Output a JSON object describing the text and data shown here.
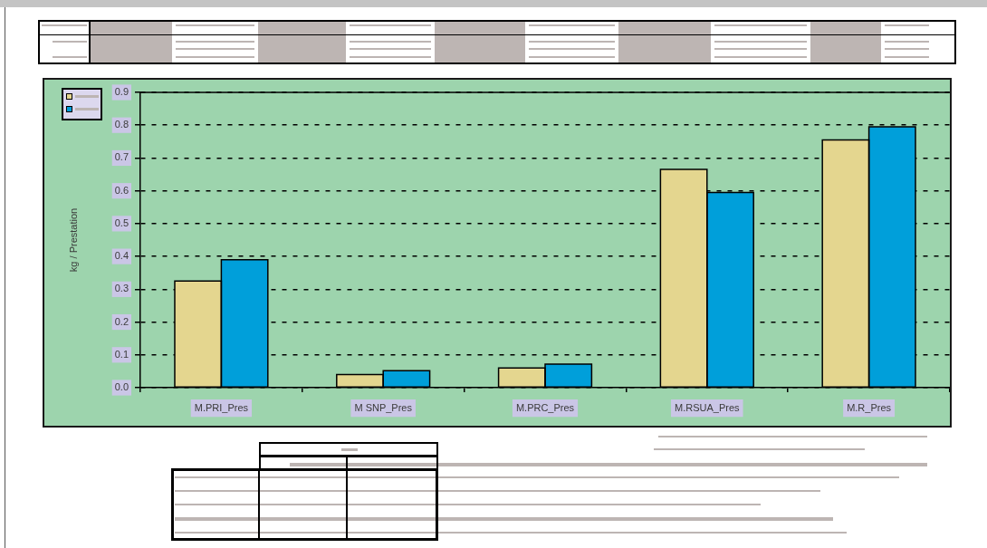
{
  "chart_data": {
    "type": "bar",
    "ylabel": "kg / Prestation",
    "categories": [
      "M.PRI_Pres",
      "M SNP_Pres",
      "M.PRC_Pres",
      "M.RSUA_Pres",
      "M.R_Pres"
    ],
    "series": [
      {
        "color": "#e4d68f",
        "values": [
          0.325,
          0.04,
          0.06,
          0.665,
          0.755
        ]
      },
      {
        "color": "#009fda",
        "values": [
          0.39,
          0.052,
          0.072,
          0.595,
          0.795
        ]
      }
    ],
    "ylim": [
      0,
      0.9
    ],
    "yticks": [
      {
        "value": 0,
        "label": "0.0"
      },
      {
        "value": 0.1,
        "label": "0.1"
      },
      {
        "value": 0.2,
        "label": "0.2"
      },
      {
        "value": 0.3,
        "label": "0.3"
      },
      {
        "value": 0.4,
        "label": "0.4"
      },
      {
        "value": 0.5,
        "label": "0.5"
      },
      {
        "value": 0.6,
        "label": "0.6"
      },
      {
        "value": 0.7,
        "label": "0.7"
      },
      {
        "value": 0.8,
        "label": "0.8"
      },
      {
        "value": 0.9,
        "label": "0.9"
      }
    ],
    "grid": "y"
  }
}
